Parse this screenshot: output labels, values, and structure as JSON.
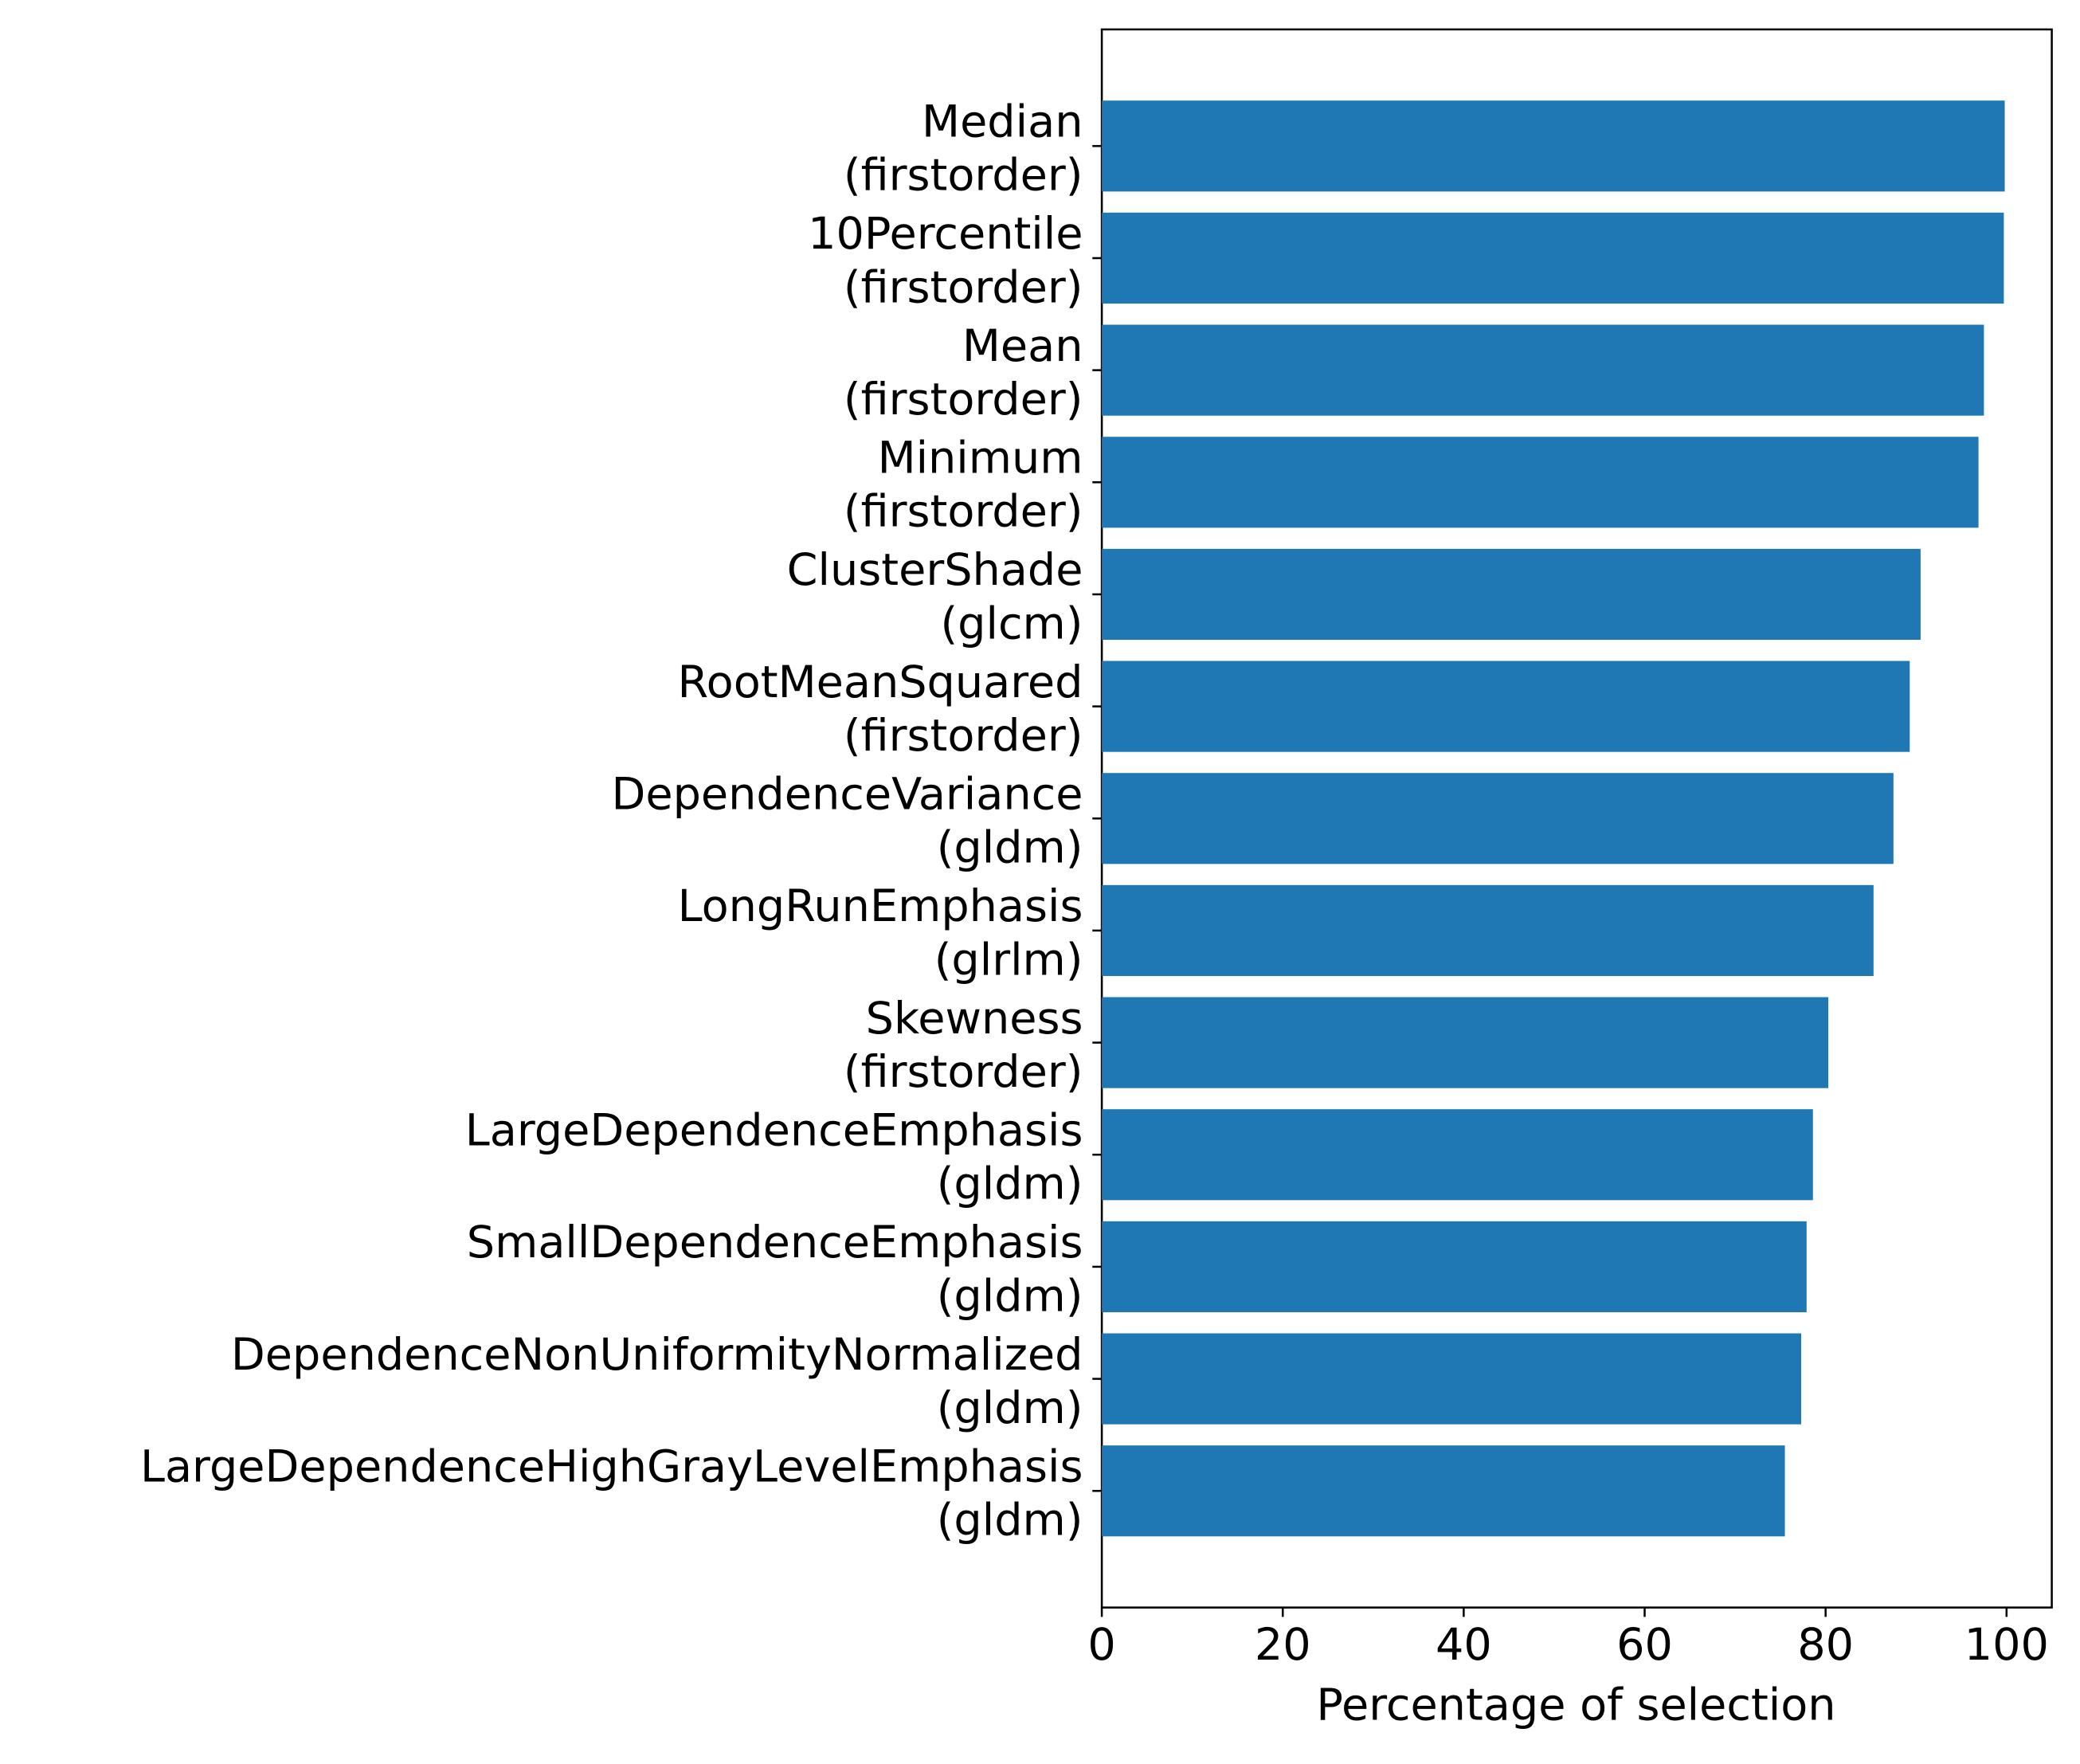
{
  "chart_data": {
    "type": "barh",
    "xlabel": "Percentage of selection",
    "categories": [
      [
        "Median",
        "(firstorder)"
      ],
      [
        "10Percentile",
        "(firstorder)"
      ],
      [
        "Mean",
        "(firstorder)"
      ],
      [
        "Minimum",
        "(firstorder)"
      ],
      [
        "ClusterShade",
        "(glcm)"
      ],
      [
        "RootMeanSquared",
        "(firstorder)"
      ],
      [
        "DependenceVariance",
        "(gldm)"
      ],
      [
        "LongRunEmphasis",
        "(glrlm)"
      ],
      [
        "Skewness",
        "(firstorder)"
      ],
      [
        "LargeDependenceEmphasis",
        "(gldm)"
      ],
      [
        "SmallDependenceEmphasis",
        "(gldm)"
      ],
      [
        "DependenceNonUniformityNormalized",
        "(gldm)"
      ],
      [
        "LargeDependenceHighGrayLevelEmphasis",
        "(gldm)"
      ]
    ],
    "values": [
      99.8,
      99.7,
      97.5,
      96.9,
      90.5,
      89.3,
      87.5,
      85.3,
      80.3,
      78.6,
      77.9,
      77.3,
      75.5
    ],
    "color": "#1f77b4",
    "xlim": [
      0,
      105
    ],
    "xticks": [
      0,
      20,
      40,
      60,
      80,
      100
    ]
  }
}
